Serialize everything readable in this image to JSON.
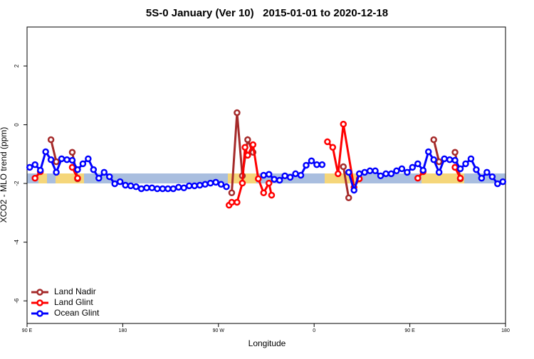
{
  "chart_data": {
    "type": "line",
    "title": "5S-0 January (Ver 10)   2015-01-01 to 2020-12-18",
    "x_label": "Longitude",
    "y_label": "XCO2 - MLO trend (ppm)",
    "xlim": [
      90,
      540
    ],
    "ylim": [
      -6.77,
      3.33
    ],
    "xticks": [
      {
        "value": 90,
        "label": "90 E"
      },
      {
        "value": 180,
        "label": "180"
      },
      {
        "value": 270,
        "label": "90 W"
      },
      {
        "value": 360,
        "label": "0"
      },
      {
        "value": 450,
        "label": "90 E"
      },
      {
        "value": 540,
        "label": "180"
      }
    ],
    "yticks": [
      -6,
      -4,
      -2,
      0,
      2
    ],
    "legend": "bottom-left",
    "series": [
      {
        "name": "Land Nadir",
        "color": "#a52a2a",
        "x": [
          112.5,
          117.5,
          null,
          132.5,
          137.5,
          null,
          282.5,
          287.5,
          292.5,
          297.5,
          302.5,
          null,
          387.5,
          392.5,
          null,
          472.5,
          477.5,
          null,
          492.5,
          497.5
        ],
        "values": [
          -0.51,
          -1.26,
          null,
          -0.94,
          -1.84,
          null,
          -2.32,
          0.41,
          -1.74,
          -0.51,
          -0.94,
          null,
          -1.43,
          -2.49,
          null,
          -0.51,
          -1.26,
          null,
          -0.94,
          -1.84
        ]
      },
      {
        "name": "Land Glint",
        "color": "#ff0000",
        "x": [
          97.5,
          102.5,
          null,
          132.5,
          137.5,
          null,
          280,
          282.5,
          287.5,
          292.5,
          295,
          297.5,
          302.5,
          307.5,
          312.5,
          317.5,
          320,
          null,
          372.5,
          377.5,
          382.5,
          387.5,
          397.5,
          402.5,
          null,
          457.5,
          462.5,
          null,
          492.5,
          497.5
        ],
        "values": [
          -1.82,
          -1.6,
          null,
          -1.45,
          -1.82,
          null,
          -2.74,
          -2.64,
          -2.64,
          -1.99,
          -0.77,
          -1.04,
          -0.68,
          -1.84,
          -2.32,
          -1.99,
          -2.4,
          null,
          -0.58,
          -0.77,
          -1.67,
          0.02,
          -2.13,
          -1.84,
          null,
          -1.82,
          -1.6,
          null,
          -1.45,
          -1.82
        ]
      },
      {
        "name": "Ocean Glint",
        "color": "#0000ff",
        "x": [
          92.5,
          97.5,
          102.5,
          107.5,
          112.5,
          117.5,
          122.5,
          127.5,
          132.5,
          137.5,
          142.5,
          147.5,
          152.5,
          157.5,
          162.5,
          167.5,
          172.5,
          177.5,
          182.5,
          187.5,
          192.5,
          197.5,
          202.5,
          207.5,
          212.5,
          217.5,
          222.5,
          227.5,
          232.5,
          237.5,
          242.5,
          247.5,
          252.5,
          257.5,
          262.5,
          267.5,
          272.5,
          277.5,
          282.5,
          287.5,
          292.5,
          297.5,
          302.5,
          307.5,
          312.5,
          317.5,
          322.5,
          327.5,
          332.5,
          337.5,
          342.5,
          347.5,
          352.5,
          357.5,
          362.5,
          367.5,
          372.5,
          377.5,
          382.5,
          387.5,
          392.5,
          397.5,
          402.5,
          407.5,
          412.5,
          417.5,
          422.5,
          427.5,
          432.5,
          437.5,
          442.5,
          447.5,
          452.5,
          457.5,
          462.5,
          467.5,
          472.5,
          477.5,
          482.5,
          487.5,
          492.5,
          497.5,
          502.5,
          507.5,
          512.5,
          517.5,
          522.5,
          527.5,
          532.5,
          537.5
        ],
        "values": [
          -1.45,
          -1.36,
          -1.55,
          -0.92,
          -1.19,
          -1.62,
          -1.16,
          -1.19,
          -1.21,
          -1.53,
          -1.33,
          -1.16,
          -1.53,
          -1.82,
          -1.62,
          -1.77,
          -2.01,
          -1.94,
          -2.06,
          -2.08,
          -2.11,
          -2.18,
          -2.15,
          -2.15,
          -2.18,
          -2.18,
          -2.18,
          -2.18,
          -2.13,
          -2.15,
          -2.08,
          -2.08,
          -2.06,
          -2.03,
          -1.99,
          -1.96,
          -2.03,
          -2.11,
          null,
          null,
          null,
          null,
          null,
          null,
          -1.72,
          -1.69,
          -1.86,
          -1.89,
          -1.74,
          -1.79,
          -1.67,
          -1.72,
          -1.38,
          -1.23,
          -1.36,
          -1.36,
          null,
          null,
          null,
          null,
          -1.62,
          -2.23,
          -1.67,
          -1.62,
          -1.57,
          -1.57,
          -1.74,
          -1.67,
          -1.67,
          -1.57,
          -1.5,
          -1.62,
          -1.45,
          -1.33,
          -1.55,
          -0.92,
          -1.19,
          -1.62,
          -1.16,
          -1.19,
          -1.21,
          -1.5,
          -1.33,
          -1.16,
          -1.53,
          -1.82,
          -1.62,
          -1.77,
          -2.01,
          -1.94
        ]
      }
    ]
  }
}
